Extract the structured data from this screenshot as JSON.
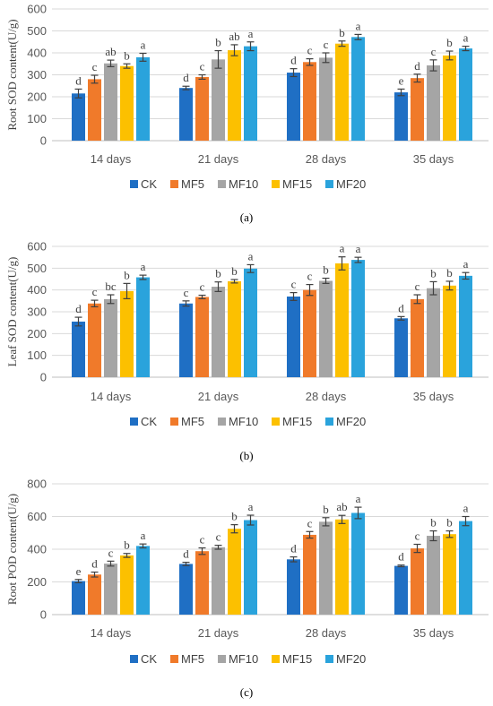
{
  "colors": {
    "CK": "#1f6fc4",
    "MF5": "#f07a2a",
    "MF10": "#a5a5a5",
    "MF15": "#fcc000",
    "MF20": "#2aa3dc",
    "grid": "#d9d9d9",
    "axis": "#bfbfbf",
    "error": "#404040"
  },
  "chart_data": [
    {
      "type": "bar",
      "caption": "(a)",
      "ylabel": "Root SOD content(U/g)",
      "ylim": [
        0,
        600
      ],
      "yticks": [
        0,
        100,
        200,
        300,
        400,
        500,
        600
      ],
      "categories": [
        "14 days",
        "21 days",
        "28 days",
        "35 days"
      ],
      "legend_position": "bottom",
      "grid": true,
      "series": [
        {
          "name": "CK",
          "values": [
            215,
            240,
            310,
            220
          ],
          "errors": [
            20,
            8,
            18,
            15
          ],
          "labels": [
            "d",
            "d",
            "d",
            "e"
          ]
        },
        {
          "name": "MF5",
          "values": [
            280,
            290,
            358,
            285
          ],
          "errors": [
            18,
            10,
            15,
            18
          ],
          "labels": [
            "c",
            "c",
            "c",
            "d"
          ]
        },
        {
          "name": "MF10",
          "values": [
            352,
            370,
            378,
            343
          ],
          "errors": [
            15,
            40,
            22,
            25
          ],
          "labels": [
            "ab",
            "b",
            "c",
            "c"
          ]
        },
        {
          "name": "MF15",
          "values": [
            340,
            412,
            442,
            388
          ],
          "errors": [
            10,
            25,
            12,
            20
          ],
          "labels": [
            "b",
            "ab",
            "b",
            "b"
          ]
        },
        {
          "name": "MF20",
          "values": [
            380,
            430,
            472,
            420
          ],
          "errors": [
            18,
            20,
            12,
            10
          ],
          "labels": [
            "a",
            "a",
            "a",
            "a"
          ]
        }
      ]
    },
    {
      "type": "bar",
      "caption": "(b)",
      "ylabel": "Leaf SOD content(U/g)",
      "ylim": [
        0,
        600
      ],
      "yticks": [
        0,
        100,
        200,
        300,
        400,
        500,
        600
      ],
      "categories": [
        "14 days",
        "21 days",
        "28 days",
        "35 days"
      ],
      "legend_position": "bottom",
      "grid": true,
      "series": [
        {
          "name": "CK",
          "values": [
            255,
            338,
            370,
            270
          ],
          "errors": [
            20,
            12,
            18,
            8
          ],
          "labels": [
            "d",
            "c",
            "c",
            "d"
          ]
        },
        {
          "name": "MF5",
          "values": [
            338,
            368,
            400,
            358
          ],
          "errors": [
            15,
            8,
            25,
            20
          ],
          "labels": [
            "c",
            "c",
            "c",
            "c"
          ]
        },
        {
          "name": "MF10",
          "values": [
            358,
            415,
            442,
            408
          ],
          "errors": [
            20,
            22,
            12,
            30
          ],
          "labels": [
            "bc",
            "b",
            "b",
            "b"
          ]
        },
        {
          "name": "MF15",
          "values": [
            395,
            440,
            522,
            420
          ],
          "errors": [
            35,
            8,
            30,
            20
          ],
          "labels": [
            "b",
            "b",
            "a",
            "b"
          ]
        },
        {
          "name": "MF20",
          "values": [
            458,
            498,
            538,
            465
          ],
          "errors": [
            10,
            18,
            12,
            15
          ],
          "labels": [
            "a",
            "a",
            "a",
            "a"
          ]
        }
      ]
    },
    {
      "type": "bar",
      "caption": "(c)",
      "ylabel": "Root POD content(U/g)",
      "ylim": [
        0,
        800
      ],
      "yticks": [
        0,
        200,
        400,
        600,
        800
      ],
      "categories": [
        "14 days",
        "21 days",
        "28 days",
        "35 days"
      ],
      "legend_position": "bottom",
      "grid": true,
      "series": [
        {
          "name": "CK",
          "values": [
            205,
            310,
            338,
            298
          ],
          "errors": [
            10,
            10,
            15,
            5
          ],
          "labels": [
            "e",
            "d",
            "d",
            "d"
          ]
        },
        {
          "name": "MF5",
          "values": [
            245,
            388,
            488,
            405
          ],
          "errors": [
            15,
            20,
            20,
            25
          ],
          "labels": [
            "d",
            "c",
            "c",
            "c"
          ]
        },
        {
          "name": "MF10",
          "values": [
            312,
            412,
            568,
            482
          ],
          "errors": [
            15,
            12,
            25,
            30
          ],
          "labels": [
            "c",
            "c",
            "b",
            "b"
          ]
        },
        {
          "name": "MF15",
          "values": [
            362,
            525,
            582,
            492
          ],
          "errors": [
            12,
            25,
            25,
            20
          ],
          "labels": [
            "b",
            "b",
            "ab",
            "b"
          ]
        },
        {
          "name": "MF20",
          "values": [
            420,
            578,
            622,
            572
          ],
          "errors": [
            12,
            30,
            35,
            28
          ],
          "labels": [
            "a",
            "a",
            "a",
            "a"
          ]
        }
      ]
    }
  ]
}
